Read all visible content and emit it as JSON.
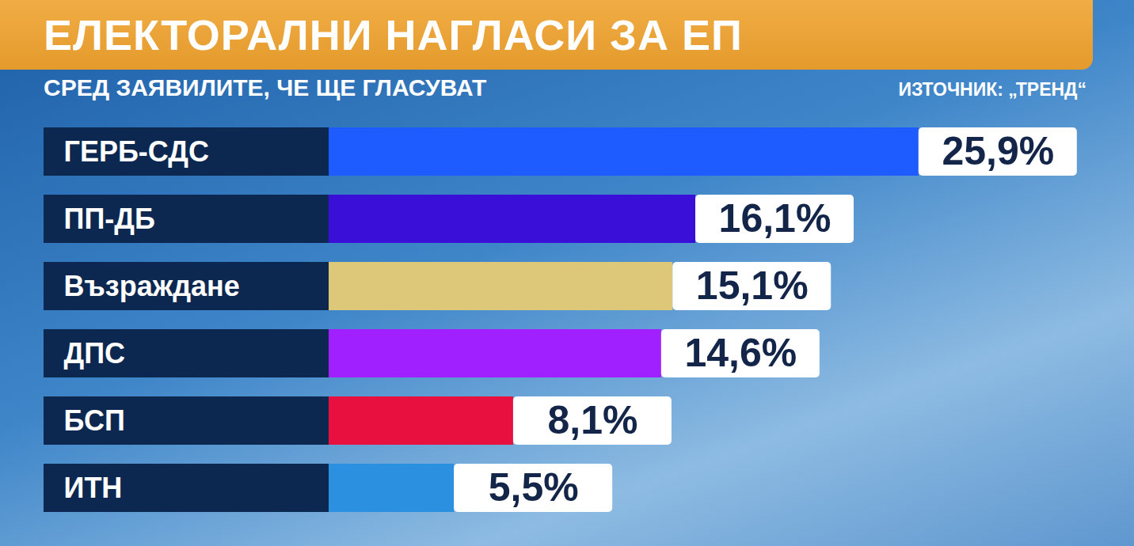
{
  "chart_data": {
    "type": "bar",
    "title": "ЕЛЕКТОРАЛНИ НАГЛАСИ ЗА ЕП",
    "subtitle": "СРЕД ЗАЯВИЛИТЕ, ЧЕ ЩЕ ГЛАСУВАТ",
    "source": "ИЗТОЧНИК: „ТРЕНД“",
    "orientation": "horizontal",
    "categories": [
      "ГЕРБ-СДС",
      "ПП-ДБ",
      "Възраждане",
      "ДПС",
      "БСП",
      "ИТН"
    ],
    "values": [
      25.9,
      16.1,
      15.1,
      14.6,
      8.1,
      5.5
    ],
    "value_labels": [
      "25,9%",
      "16,1%",
      "15,1%",
      "14,6%",
      "8,1%",
      "5,5%"
    ],
    "colors": [
      "#1f5cff",
      "#3a10d8",
      "#dcc878",
      "#a020ff",
      "#e8103e",
      "#2b90e0"
    ],
    "xlim": [
      0,
      33
    ],
    "data_labels": true,
    "tick_labels": "y",
    "grid": false
  }
}
